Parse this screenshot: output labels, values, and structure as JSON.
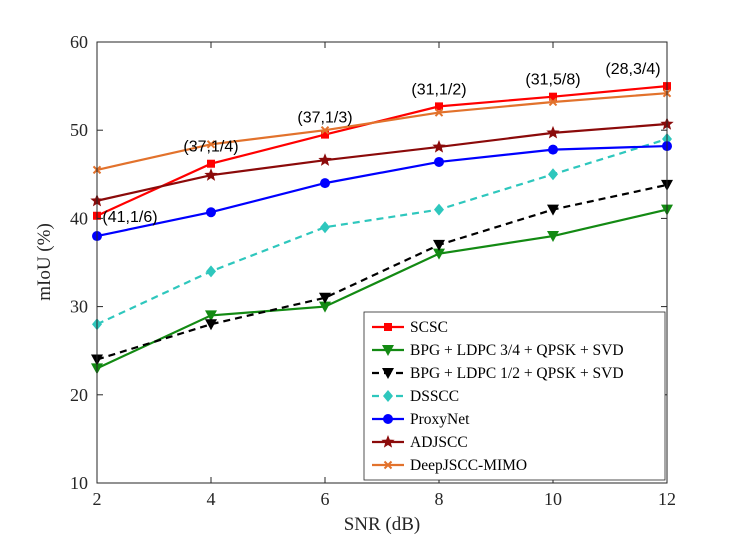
{
  "chart_data": {
    "type": "line",
    "title": "",
    "xlabel": "SNR (dB)",
    "ylabel": "mIoU (%)",
    "x": [
      2,
      4,
      6,
      8,
      10,
      12
    ],
    "xlim": [
      2,
      12
    ],
    "ylim": [
      10,
      60
    ],
    "xticks": [
      "2",
      "4",
      "6",
      "8",
      "10",
      "12"
    ],
    "yticks": [
      "10",
      "20",
      "30",
      "40",
      "50",
      "60"
    ],
    "grid": false,
    "legend_position": "bottom-right",
    "series": [
      {
        "name": "SCSC",
        "values": [
          40.3,
          46.2,
          49.5,
          52.7,
          53.8,
          55.0
        ],
        "color": "#ff0000",
        "marker": "square",
        "dash": "solid"
      },
      {
        "name": "BPG + LDPC 3/4 + QPSK + SVD",
        "values": [
          23.0,
          29.0,
          30.0,
          36.0,
          38.0,
          41.0
        ],
        "color": "#138a13",
        "marker": "triangle-down",
        "dash": "solid"
      },
      {
        "name": "BPG + LDPC 1/2 + QPSK + SVD",
        "values": [
          24.0,
          28.0,
          31.0,
          37.0,
          41.0,
          43.8
        ],
        "color": "#000000",
        "marker": "triangle-down",
        "dash": "dashed"
      },
      {
        "name": "DSSCC",
        "values": [
          28.0,
          34.0,
          39.0,
          41.0,
          45.0,
          49.0
        ],
        "color": "#2ec7bd",
        "marker": "diamond",
        "dash": "dashed"
      },
      {
        "name": "ProxyNet",
        "values": [
          38.0,
          40.7,
          44.0,
          46.4,
          47.8,
          48.2
        ],
        "color": "#0000ff",
        "marker": "circle",
        "dash": "solid"
      },
      {
        "name": "ADJSCC",
        "values": [
          42.0,
          44.9,
          46.6,
          48.1,
          49.7,
          50.7
        ],
        "color": "#8b0a0a",
        "marker": "star",
        "dash": "solid"
      },
      {
        "name": "DeepJSCC-MIMO",
        "values": [
          45.5,
          48.4,
          50.0,
          52.0,
          53.2,
          54.2
        ],
        "color": "#e2722c",
        "marker": "x",
        "dash": "solid"
      }
    ],
    "annotations": [
      {
        "text": "(41,1/6)",
        "x": 2,
        "y": 40.3
      },
      {
        "text": "(37,1/4)",
        "x": 4,
        "y": 46.2
      },
      {
        "text": "(37,1/3)",
        "x": 6,
        "y": 49.5
      },
      {
        "text": "(31,1/2)",
        "x": 8,
        "y": 52.7
      },
      {
        "text": "(31,5/8)",
        "x": 10,
        "y": 53.8
      },
      {
        "text": "(28,3/4)",
        "x": 12,
        "y": 55.0
      }
    ]
  }
}
